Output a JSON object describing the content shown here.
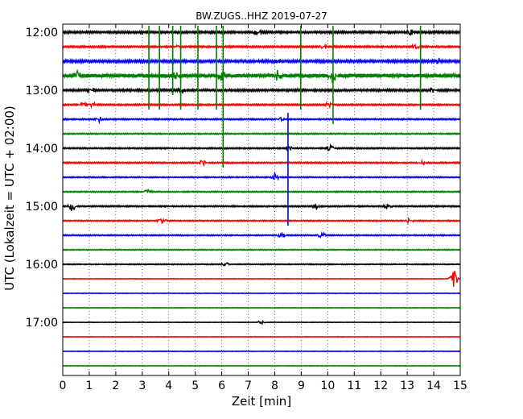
{
  "chart_data": {
    "type": "line",
    "title": "BW.ZUGS..HHZ 2019-07-27",
    "xlabel": "Zeit  [min]",
    "ylabel": "UTC (Lokalzeit = UTC + 02:00)",
    "xlim": [
      0,
      15
    ],
    "x_ticks": [
      "0",
      "1",
      "2",
      "3",
      "4",
      "5",
      "6",
      "7",
      "8",
      "9",
      "10",
      "11",
      "12",
      "13",
      "14",
      "15"
    ],
    "grid": {
      "x": "dotted",
      "y": false
    },
    "y_ticks": [
      {
        "label": "12:00",
        "trace": 0
      },
      {
        "label": "13:00",
        "trace": 4
      },
      {
        "label": "14:00",
        "trace": 8
      },
      {
        "label": "15:00",
        "trace": 12
      },
      {
        "label": "16:00",
        "trace": 16
      },
      {
        "label": "17:00",
        "trace": 20
      }
    ],
    "trace_minutes": 15,
    "trace_colors": [
      "#000000",
      "#ff0000",
      "#0000ff",
      "#008000"
    ],
    "trace_count": 24,
    "traces": [
      {
        "start": "12:00",
        "noise": 0.55,
        "events": [
          {
            "x": 7.35,
            "amp": 0.5
          },
          {
            "x": 13.1,
            "amp": 0.4
          }
        ]
      },
      {
        "start": "12:15",
        "noise": 0.45,
        "events": [
          {
            "x": 4.3,
            "amp": 0.5
          },
          {
            "x": 9.85,
            "amp": 0.4
          },
          {
            "x": 13.35,
            "amp": 0.5
          }
        ]
      },
      {
        "start": "12:30",
        "noise": 0.65,
        "events": [
          {
            "x": 8.1,
            "amp": 0.4
          },
          {
            "x": 14.2,
            "amp": 0.5
          }
        ]
      },
      {
        "start": "12:45",
        "noise": 1.0,
        "events": [
          {
            "x": 0.55,
            "amp": 0.8
          },
          {
            "x": 4.3,
            "amp": 0.7
          },
          {
            "x": 6.0,
            "amp": 0.9
          },
          {
            "x": 8.1,
            "amp": 0.9
          },
          {
            "x": 10.2,
            "amp": 1.2
          }
        ]
      },
      {
        "start": "13:00",
        "noise": 0.55,
        "events": [
          {
            "x": 1.05,
            "amp": 0.5
          },
          {
            "x": 4.5,
            "amp": 0.5
          },
          {
            "x": 13.95,
            "amp": 0.4
          }
        ]
      },
      {
        "start": "13:15",
        "noise": 0.4,
        "events": [
          {
            "x": 0.75,
            "amp": 0.5
          },
          {
            "x": 1.1,
            "amp": 0.5
          },
          {
            "x": 10.05,
            "amp": 0.4
          }
        ]
      },
      {
        "start": "13:30",
        "noise": 0.35,
        "events": [
          {
            "x": 1.4,
            "amp": 0.6
          },
          {
            "x": 8.2,
            "amp": 0.5
          }
        ]
      },
      {
        "start": "13:45",
        "noise": 0.3,
        "events": []
      },
      {
        "start": "14:00",
        "noise": 0.35,
        "events": [
          {
            "x": 8.55,
            "amp": 0.5
          },
          {
            "x": 10.1,
            "amp": 0.5
          }
        ]
      },
      {
        "start": "14:15",
        "noise": 0.35,
        "events": [
          {
            "x": 5.3,
            "amp": 0.6
          },
          {
            "x": 13.55,
            "amp": 0.5
          }
        ]
      },
      {
        "start": "14:30",
        "noise": 0.3,
        "events": [
          {
            "x": 8.0,
            "amp": 0.7
          }
        ]
      },
      {
        "start": "14:45",
        "noise": 0.3,
        "events": [
          {
            "x": 3.2,
            "amp": 0.6
          }
        ]
      },
      {
        "start": "15:00",
        "noise": 0.35,
        "events": [
          {
            "x": 0.35,
            "amp": 0.8
          },
          {
            "x": 9.6,
            "amp": 0.6
          },
          {
            "x": 12.25,
            "amp": 0.4
          }
        ]
      },
      {
        "start": "15:15",
        "noise": 0.3,
        "events": [
          {
            "x": 3.75,
            "amp": 0.6
          },
          {
            "x": 13.1,
            "amp": 0.6
          }
        ]
      },
      {
        "start": "15:30",
        "noise": 0.3,
        "events": [
          {
            "x": 8.25,
            "amp": 0.5
          },
          {
            "x": 9.75,
            "amp": 0.7
          }
        ]
      },
      {
        "start": "15:45",
        "noise": 0.25,
        "events": []
      },
      {
        "start": "16:00",
        "noise": 0.25,
        "events": [
          {
            "x": 6.1,
            "amp": 0.4
          }
        ]
      },
      {
        "start": "16:15",
        "noise": 0.15,
        "events": [
          {
            "x": 14.75,
            "amp": 2.0
          }
        ]
      },
      {
        "start": "16:30",
        "noise": 0.15,
        "events": []
      },
      {
        "start": "16:45",
        "noise": 0.15,
        "events": []
      },
      {
        "start": "17:00",
        "noise": 0.15,
        "events": [
          {
            "x": 7.5,
            "amp": 0.3
          }
        ]
      },
      {
        "start": "17:15",
        "noise": 0.15,
        "events": []
      },
      {
        "start": "17:30",
        "noise": 0.15,
        "events": []
      },
      {
        "start": "17:45",
        "noise": 0.15,
        "events": []
      }
    ],
    "spikes": [
      {
        "x": 3.25,
        "trace_from": 0,
        "trace_to": 5,
        "color": "#008000"
      },
      {
        "x": 3.65,
        "trace_from": 0,
        "trace_to": 5,
        "color": "#008000"
      },
      {
        "x": 4.15,
        "trace_from": 0,
        "trace_to": 4,
        "color": "#008000"
      },
      {
        "x": 4.45,
        "trace_from": 0,
        "trace_to": 5,
        "color": "#008000"
      },
      {
        "x": 5.1,
        "trace_from": 0,
        "trace_to": 5,
        "color": "#008000"
      },
      {
        "x": 5.8,
        "trace_from": 0,
        "trace_to": 5,
        "color": "#008000"
      },
      {
        "x": 6.05,
        "trace_from": 0,
        "trace_to": 9,
        "color": "#008000"
      },
      {
        "x": 8.98,
        "trace_from": 0,
        "trace_to": 5,
        "color": "#008000"
      },
      {
        "x": 10.2,
        "trace_from": 0,
        "trace_to": 6,
        "color": "#008000"
      },
      {
        "x": 13.5,
        "trace_from": 0,
        "trace_to": 5,
        "color": "#008000"
      },
      {
        "x": 8.5,
        "trace_from": 6,
        "trace_to": 13,
        "color": "#0000ff"
      }
    ]
  }
}
